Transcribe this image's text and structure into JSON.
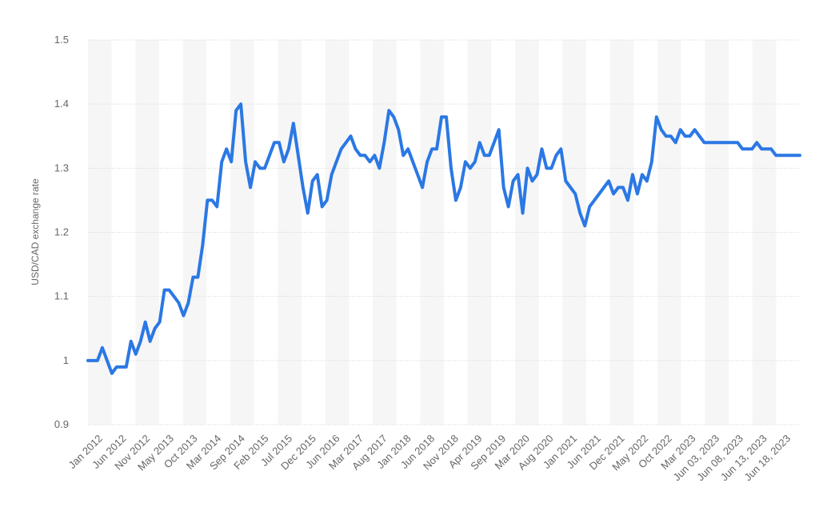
{
  "chart_data": {
    "type": "line",
    "ylabel": "USD/CAD exchange rate",
    "ylim": [
      0.9,
      1.5
    ],
    "yticks": [
      0.9,
      1,
      1.1,
      1.2,
      1.3,
      1.4,
      1.5
    ],
    "ytick_labels": [
      "0.9",
      "1",
      "1.1",
      "1.2",
      "1.3",
      "1.4",
      "1.5"
    ],
    "grid": true,
    "line_color": "#2b78e4",
    "x_tick_labels": [
      "Jan 2012",
      "Jun 2012",
      "Nov 2012",
      "May 2013",
      "Oct 2013",
      "Mar 2014",
      "Sep 2014",
      "Feb 2015",
      "Jul 2015",
      "Dec 2015",
      "Jun 2016",
      "Mar 2017",
      "Aug 2017",
      "Jan 2018",
      "Jun 2018",
      "Nov 2018",
      "Apr 2019",
      "Sep 2019",
      "Mar 2020",
      "Aug 2020",
      "Jan 2021",
      "Jun 2021",
      "Dec 2021",
      "May 2022",
      "Oct 2022",
      "Mar 2023",
      "Jun 03, 2023",
      "Jun 08, 2023",
      "Jun 13, 2023",
      "Jun 18, 2023"
    ],
    "series": [
      {
        "name": "",
        "values": [
          1.0,
          1.0,
          1.0,
          1.02,
          1.0,
          0.98,
          0.99,
          0.99,
          0.99,
          1.03,
          1.01,
          1.03,
          1.06,
          1.03,
          1.05,
          1.06,
          1.11,
          1.11,
          1.1,
          1.09,
          1.07,
          1.09,
          1.13,
          1.13,
          1.18,
          1.25,
          1.25,
          1.24,
          1.31,
          1.33,
          1.31,
          1.39,
          1.4,
          1.31,
          1.27,
          1.31,
          1.3,
          1.3,
          1.32,
          1.34,
          1.34,
          1.31,
          1.33,
          1.37,
          1.32,
          1.27,
          1.23,
          1.28,
          1.29,
          1.24,
          1.25,
          1.29,
          1.31,
          1.33,
          1.34,
          1.35,
          1.33,
          1.32,
          1.32,
          1.31,
          1.32,
          1.3,
          1.34,
          1.39,
          1.38,
          1.36,
          1.32,
          1.33,
          1.31,
          1.29,
          1.27,
          1.31,
          1.33,
          1.33,
          1.38,
          1.38,
          1.3,
          1.25,
          1.27,
          1.31,
          1.3,
          1.31,
          1.34,
          1.32,
          1.32,
          1.34,
          1.36,
          1.27,
          1.24,
          1.28,
          1.29,
          1.23,
          1.3,
          1.28,
          1.29,
          1.33,
          1.3,
          1.3,
          1.32,
          1.33,
          1.28,
          1.27,
          1.26,
          1.23,
          1.21,
          1.24,
          1.25,
          1.26,
          1.27,
          1.28,
          1.26,
          1.27,
          1.27,
          1.25,
          1.29,
          1.26,
          1.29,
          1.28,
          1.31,
          1.38,
          1.36,
          1.35,
          1.35,
          1.34,
          1.36,
          1.35,
          1.35,
          1.36,
          1.35,
          1.34,
          1.34,
          1.34,
          1.34,
          1.34,
          1.34,
          1.34,
          1.34,
          1.33,
          1.33,
          1.33,
          1.34,
          1.33,
          1.33,
          1.33,
          1.32,
          1.32,
          1.32,
          1.32,
          1.32,
          1.32
        ]
      }
    ]
  }
}
